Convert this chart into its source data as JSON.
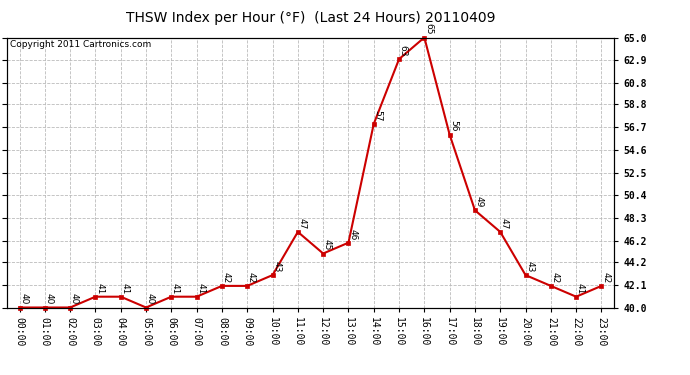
{
  "title": "THSW Index per Hour (°F)  (Last 24 Hours) 20110409",
  "copyright": "Copyright 2011 Cartronics.com",
  "hours": [
    "00:00",
    "01:00",
    "02:00",
    "03:00",
    "04:00",
    "05:00",
    "06:00",
    "07:00",
    "08:00",
    "09:00",
    "10:00",
    "11:00",
    "12:00",
    "13:00",
    "14:00",
    "15:00",
    "16:00",
    "17:00",
    "18:00",
    "19:00",
    "20:00",
    "21:00",
    "22:00",
    "23:00"
  ],
  "values": [
    40,
    40,
    40,
    41,
    41,
    40,
    41,
    41,
    42,
    42,
    43,
    47,
    45,
    46,
    57,
    63,
    65,
    56,
    49,
    47,
    43,
    42,
    41,
    42
  ],
  "ylim_min": 40.0,
  "ylim_max": 65.0,
  "yticks": [
    40.0,
    42.1,
    44.2,
    46.2,
    48.3,
    50.4,
    52.5,
    54.6,
    56.7,
    58.8,
    60.8,
    62.9,
    65.0
  ],
  "line_color": "#cc0000",
  "marker_color": "#cc0000",
  "bg_color": "#ffffff",
  "grid_color": "#bbbbbb",
  "title_fontsize": 10,
  "label_fontsize": 7,
  "copyright_fontsize": 6.5,
  "annot_fontsize": 6.5
}
